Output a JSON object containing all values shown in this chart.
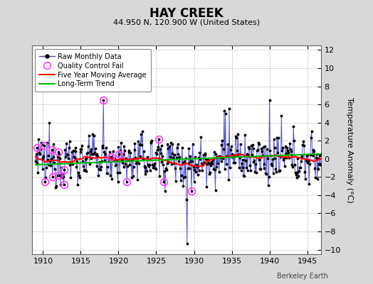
{
  "title": "HAY CREEK",
  "subtitle": "44.950 N, 120.900 W (United States)",
  "ylabel": "Temperature Anomaly (°C)",
  "credit": "Berkeley Earth",
  "xlim": [
    1908.5,
    1946.8
  ],
  "ylim": [
    -10.5,
    12.5
  ],
  "yticks": [
    -10,
    -8,
    -6,
    -4,
    -2,
    0,
    2,
    4,
    6,
    8,
    10,
    12
  ],
  "xticks": [
    1910,
    1915,
    1920,
    1925,
    1930,
    1935,
    1940,
    1945
  ],
  "bg_color": "#d8d8d8",
  "plot_bg_color": "#ffffff",
  "grid_color": "#bbbbbb",
  "raw_line_color": "#4444cc",
  "raw_marker_color": "#000000",
  "ma_color": "#ff0000",
  "trend_color": "#00bb00",
  "qc_color": "#ff44ff",
  "title_fontsize": 12,
  "subtitle_fontsize": 8,
  "tick_fontsize": 8,
  "ylabel_fontsize": 8,
  "legend_fontsize": 7,
  "credit_fontsize": 7
}
